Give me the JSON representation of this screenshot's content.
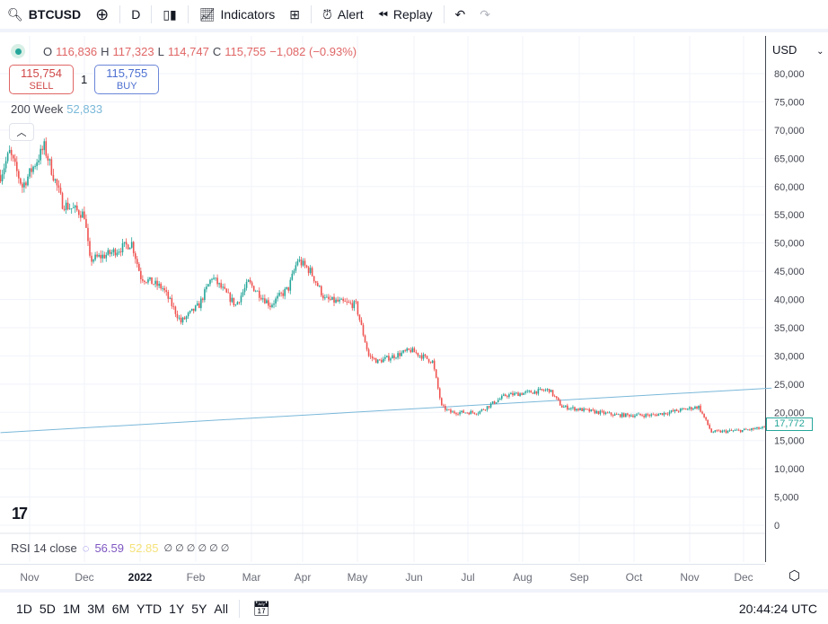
{
  "toolbar": {
    "symbol": "BTCUSD",
    "interval": "D",
    "indicators": "Indicators",
    "alert": "Alert",
    "replay": "Replay"
  },
  "legend": {
    "o_label": "O",
    "o": "116,836",
    "h_label": "H",
    "h": "117,323",
    "l_label": "L",
    "l": "114,747",
    "c_label": "C",
    "c": "115,755",
    "change": "−1,082 (−0.93%)"
  },
  "trade": {
    "sell_price": "115,754",
    "sell": "SELL",
    "qty": "1",
    "buy_price": "115,755",
    "buy": "BUY"
  },
  "ma": {
    "label": "200 Week",
    "value": "52,833"
  },
  "currency": "USD",
  "last_price": "17,772",
  "rsi": {
    "label": "RSI 14 close",
    "v1": "56.59",
    "v2": "52.85",
    "rest": "∅ ∅ ∅ ∅ ∅ ∅"
  },
  "time_labels": [
    "Nov",
    "Dec",
    "2022",
    "Feb",
    "Mar",
    "Apr",
    "May",
    "Jun",
    "Jul",
    "Aug",
    "Sep",
    "Oct",
    "Nov",
    "Dec"
  ],
  "ranges": [
    "1D",
    "5D",
    "1M",
    "3M",
    "6M",
    "YTD",
    "1Y",
    "5Y",
    "All"
  ],
  "clock": "20:44:24 UTC",
  "colors": {
    "up": "#26a69a",
    "down": "#ef5350",
    "ma": "#7ab8d9"
  },
  "chart_data": {
    "type": "candlestick",
    "y_ticks": [
      0,
      5000,
      10000,
      15000,
      20000,
      25000,
      30000,
      35000,
      40000,
      45000,
      50000,
      55000,
      60000,
      65000,
      70000,
      75000,
      80000
    ],
    "path": [
      [
        "2021-10-16",
        62000
      ],
      [
        "2021-10-21",
        66000
      ],
      [
        "2021-10-28",
        60000
      ],
      [
        "2021-11-09",
        67000
      ],
      [
        "2021-11-19",
        57000
      ],
      [
        "2021-12-01",
        55000
      ],
      [
        "2021-12-04",
        47000
      ],
      [
        "2021-12-14",
        48000
      ],
      [
        "2021-12-27",
        50000
      ],
      [
        "2022-01-01",
        44000
      ],
      [
        "2022-01-13",
        42000
      ],
      [
        "2022-01-23",
        36000
      ],
      [
        "2022-02-02",
        39000
      ],
      [
        "2022-02-09",
        44000
      ],
      [
        "2022-02-22",
        39000
      ],
      [
        "2022-03-01",
        43000
      ],
      [
        "2022-03-13",
        39000
      ],
      [
        "2022-03-23",
        42000
      ],
      [
        "2022-03-28",
        47000
      ],
      [
        "2022-04-04",
        45000
      ],
      [
        "2022-04-12",
        40000
      ],
      [
        "2022-04-29",
        39000
      ],
      [
        "2022-05-06",
        30000
      ],
      [
        "2022-05-11",
        29000
      ],
      [
        "2022-05-29",
        31000
      ],
      [
        "2022-06-10",
        29000
      ],
      [
        "2022-06-15",
        21000
      ],
      [
        "2022-06-20",
        20000
      ],
      [
        "2022-07-05",
        20000
      ],
      [
        "2022-07-20",
        23000
      ],
      [
        "2022-08-13",
        24000
      ],
      [
        "2022-08-20",
        21000
      ],
      [
        "2022-09-09",
        20000
      ],
      [
        "2022-09-19",
        19500
      ],
      [
        "2022-10-09",
        19500
      ],
      [
        "2022-11-03",
        21000
      ],
      [
        "2022-11-10",
        16500
      ],
      [
        "2022-11-27",
        16800
      ],
      [
        "2022-12-13",
        17400
      ]
    ],
    "ma_line": [
      [
        "2021-10-16",
        16400
      ],
      [
        "2022-12-13",
        24300
      ]
    ]
  }
}
